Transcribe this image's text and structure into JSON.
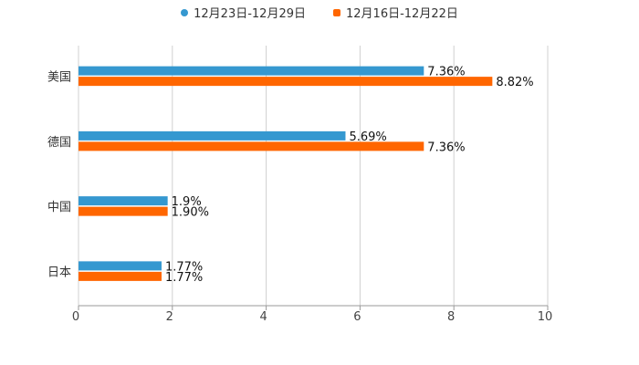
{
  "chart_data": {
    "type": "bar",
    "orientation": "horizontal",
    "categories": [
      "美国",
      "德国",
      "中国",
      "日本"
    ],
    "series": [
      {
        "name": "12月23日-12月29日",
        "color": "#3598d0",
        "values": [
          7.36,
          5.69,
          1.9,
          1.77
        ],
        "labels": [
          "7.36%",
          "5.69%",
          "1.9%",
          "1.77%"
        ]
      },
      {
        "name": "12月16日-12月22日",
        "color": "#ff6600",
        "values": [
          8.82,
          7.36,
          1.9,
          1.77
        ],
        "labels": [
          "8.82%",
          "7.36%",
          "1.90%",
          "1.77%"
        ]
      }
    ],
    "xlim": [
      0,
      10
    ],
    "xticks": [
      "0",
      "2",
      "4",
      "6",
      "8",
      "10"
    ],
    "grid": true,
    "legend_position": "top-center",
    "title": "",
    "xlabel": "",
    "ylabel": ""
  }
}
